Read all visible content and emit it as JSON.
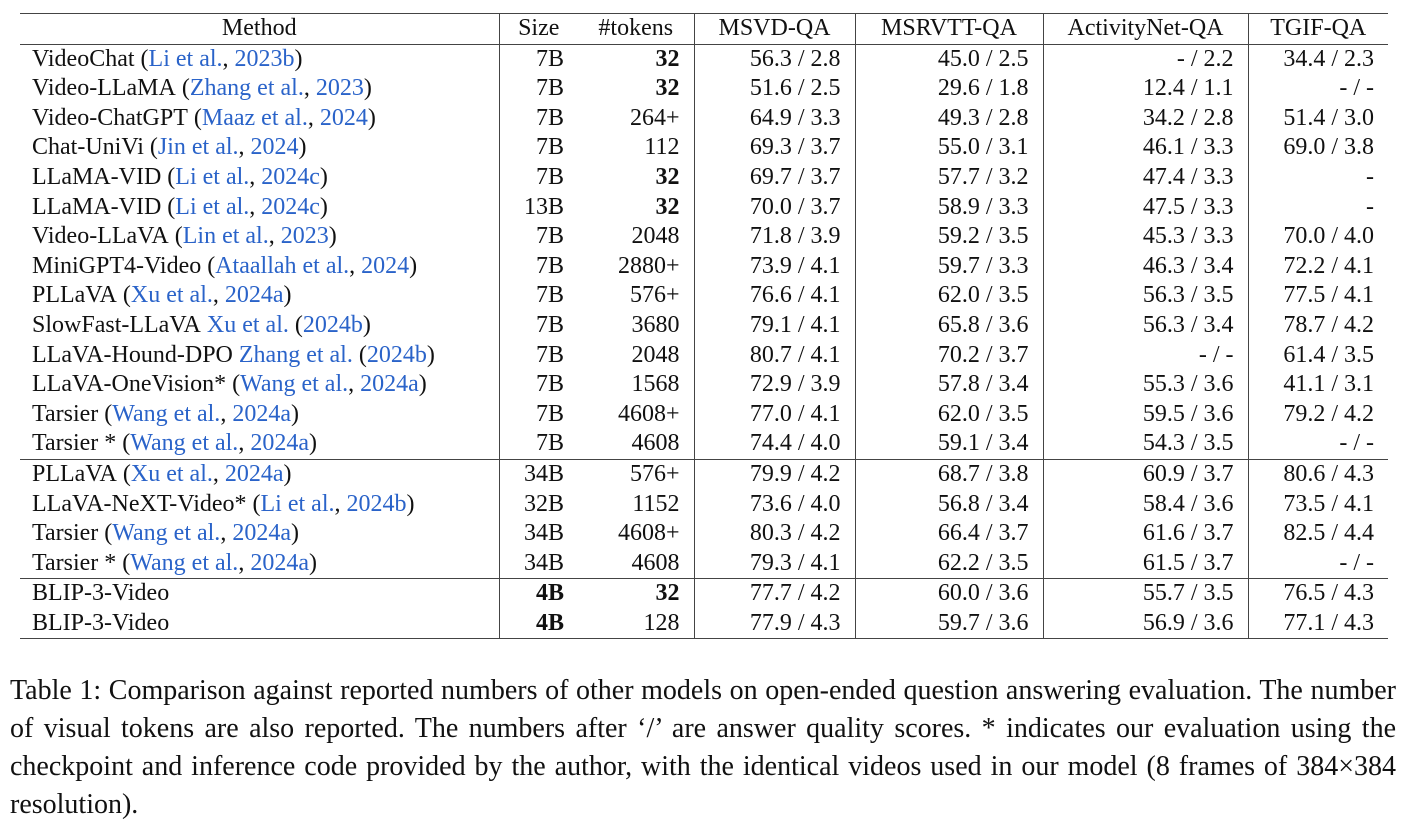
{
  "table": {
    "header": [
      "Method",
      "Size",
      "#tokens",
      "MSVD-QA",
      "MSRVTT-QA",
      "ActivityNet-QA",
      "TGIF-QA"
    ],
    "cite_marks": {
      "open": "(",
      "sep": ", ",
      "close": ")"
    },
    "link_color": "#2a63c9",
    "groups": [
      {
        "rows": [
          {
            "method": {
              "name": "VideoChat",
              "authors": "Li et al.",
              "year": "2023b",
              "style": "paren"
            },
            "cells": [
              "7B",
              "32",
              "56.3 / 2.8",
              "45.0 / 2.5",
              "- / 2.2",
              "34.4 / 2.3"
            ],
            "bold": [
              1
            ]
          },
          {
            "method": {
              "name": "Video-LLaMA",
              "authors": "Zhang et al.",
              "year": "2023",
              "style": "paren"
            },
            "cells": [
              "7B",
              "32",
              "51.6 / 2.5",
              "29.6 / 1.8",
              "12.4 / 1.1",
              "- / -"
            ],
            "bold": [
              1
            ]
          },
          {
            "method": {
              "name": "Video-ChatGPT",
              "authors": "Maaz et al.",
              "year": "2024",
              "style": "paren"
            },
            "cells": [
              "7B",
              "264+",
              "64.9 / 3.3",
              "49.3 / 2.8",
              "34.2 / 2.8",
              "51.4 / 3.0"
            ],
            "bold": []
          },
          {
            "method": {
              "name": "Chat-UniVi",
              "authors": "Jin et al.",
              "year": "2024",
              "style": "paren"
            },
            "cells": [
              "7B",
              "112",
              "69.3 / 3.7",
              "55.0 / 3.1",
              "46.1 / 3.3",
              "69.0 / 3.8"
            ],
            "bold": []
          },
          {
            "method": {
              "name": "LLaMA-VID",
              "authors": "Li et al.",
              "year": "2024c",
              "style": "paren"
            },
            "cells": [
              "7B",
              "32",
              "69.7 / 3.7",
              "57.7 / 3.2",
              "47.4 / 3.3",
              "-"
            ],
            "bold": [
              1
            ]
          },
          {
            "method": {
              "name": "LLaMA-VID",
              "authors": "Li et al.",
              "year": "2024c",
              "style": "paren"
            },
            "cells": [
              "13B",
              "32",
              "70.0 / 3.7",
              "58.9 / 3.3",
              "47.5 / 3.3",
              "-"
            ],
            "bold": [
              1
            ]
          },
          {
            "method": {
              "name": "Video-LLaVA",
              "authors": "Lin et al.",
              "year": "2023",
              "style": "paren"
            },
            "cells": [
              "7B",
              "2048",
              "71.8 / 3.9",
              "59.2 / 3.5",
              "45.3 / 3.3",
              "70.0 / 4.0"
            ],
            "bold": []
          },
          {
            "method": {
              "name": "MiniGPT4-Video",
              "authors": "Ataallah et al.",
              "year": "2024",
              "style": "paren"
            },
            "cells": [
              "7B",
              "2880+",
              "73.9 / 4.1",
              "59.7 / 3.3",
              "46.3 / 3.4",
              "72.2 / 4.1"
            ],
            "bold": []
          },
          {
            "method": {
              "name": "PLLaVA",
              "authors": "Xu et al.",
              "year": "2024a",
              "style": "paren"
            },
            "cells": [
              "7B",
              "576+",
              "76.6 / 4.1",
              "62.0 / 3.5",
              "56.3 / 3.5",
              "77.5 / 4.1"
            ],
            "bold": []
          },
          {
            "method": {
              "name": "SlowFast-LLaVA",
              "authors": "Xu et al.",
              "year": "2024b",
              "style": "text"
            },
            "cells": [
              "7B",
              "3680",
              "79.1 / 4.1",
              "65.8 / 3.6",
              "56.3 / 3.4",
              "78.7 / 4.2"
            ],
            "bold": []
          },
          {
            "method": {
              "name": "LLaVA-Hound-DPO",
              "authors": "Zhang et al.",
              "year": "2024b",
              "style": "text"
            },
            "cells": [
              "7B",
              "2048",
              "80.7 / 4.1",
              "70.2 / 3.7",
              "- / -",
              "61.4 / 3.5"
            ],
            "bold": []
          },
          {
            "method": {
              "name": "LLaVA-OneVision*",
              "authors": "Wang et al.",
              "year": "2024a",
              "style": "paren"
            },
            "cells": [
              "7B",
              "1568",
              "72.9 / 3.9",
              "57.8 / 3.4",
              "55.3 / 3.6",
              "41.1 / 3.1"
            ],
            "bold": []
          },
          {
            "method": {
              "name": "Tarsier",
              "authors": "Wang et al.",
              "year": "2024a",
              "style": "paren"
            },
            "cells": [
              "7B",
              "4608+",
              "77.0 / 4.1",
              "62.0 / 3.5",
              "59.5 / 3.6",
              "79.2 / 4.2"
            ],
            "bold": []
          },
          {
            "method": {
              "name": "Tarsier *",
              "authors": "Wang et al.",
              "year": "2024a",
              "style": "paren"
            },
            "cells": [
              "7B",
              "4608",
              "74.4 / 4.0",
              "59.1 / 3.4",
              "54.3 / 3.5",
              "- / -"
            ],
            "bold": []
          }
        ]
      },
      {
        "rows": [
          {
            "method": {
              "name": "PLLaVA",
              "authors": "Xu et al.",
              "year": "2024a",
              "style": "paren"
            },
            "cells": [
              "34B",
              "576+",
              "79.9 / 4.2",
              "68.7 / 3.8",
              "60.9 / 3.7",
              "80.6 / 4.3"
            ],
            "bold": []
          },
          {
            "method": {
              "name": "LLaVA-NeXT-Video*",
              "authors": "Li et al.",
              "year": "2024b",
              "style": "paren"
            },
            "cells": [
              "32B",
              "1152",
              "73.6 / 4.0",
              "56.8 / 3.4",
              "58.4 / 3.6",
              "73.5 / 4.1"
            ],
            "bold": []
          },
          {
            "method": {
              "name": "Tarsier",
              "authors": "Wang et al.",
              "year": "2024a",
              "style": "paren"
            },
            "cells": [
              "34B",
              "4608+",
              "80.3 / 4.2",
              "66.4 / 3.7",
              "61.6 / 3.7",
              "82.5 / 4.4"
            ],
            "bold": []
          },
          {
            "method": {
              "name": "Tarsier *",
              "authors": "Wang et al.",
              "year": "2024a",
              "style": "paren"
            },
            "cells": [
              "34B",
              "4608",
              "79.3 / 4.1",
              "62.2 / 3.5",
              "61.5 / 3.7",
              "- / -"
            ],
            "bold": []
          }
        ]
      },
      {
        "rows": [
          {
            "method": {
              "name": "BLIP-3-Video"
            },
            "cells": [
              "4B",
              "32",
              "77.7 / 4.2",
              "60.0 / 3.6",
              "55.7 / 3.5",
              "76.5 / 4.3"
            ],
            "bold": [
              0,
              1
            ]
          },
          {
            "method": {
              "name": "BLIP-3-Video"
            },
            "cells": [
              "4B",
              "128",
              "77.9 / 4.3",
              "59.7 / 3.6",
              "56.9 / 3.6",
              "77.1 / 4.3"
            ],
            "bold": [
              0
            ]
          }
        ]
      }
    ]
  },
  "caption": "Table 1: Comparison against reported numbers of other models on open-ended question answering evaluation. The number of visual tokens are also reported. The numbers after ‘/’ are answer quality scores. * indicates our evaluation using the checkpoint and inference code provided by the author, with the identical videos used in our model (8 frames of 384×384 resolution)."
}
